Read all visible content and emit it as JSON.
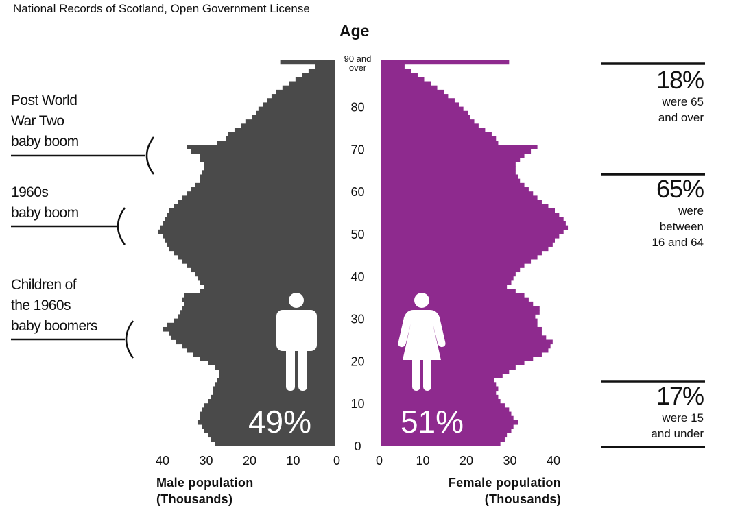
{
  "source_note": "National Records of Scotland, Open Government License",
  "chart_data": {
    "type": "bar",
    "subtype": "population-pyramid",
    "title": "Age",
    "age_labels": [
      "0",
      "10",
      "20",
      "30",
      "40",
      "50",
      "60",
      "70",
      "80",
      "90 and over"
    ],
    "age_top_label_lines": [
      "90 and",
      "over"
    ],
    "ages": [
      0,
      1,
      2,
      3,
      4,
      5,
      6,
      7,
      8,
      9,
      10,
      11,
      12,
      13,
      14,
      15,
      16,
      17,
      18,
      19,
      20,
      21,
      22,
      23,
      24,
      25,
      26,
      27,
      28,
      29,
      30,
      31,
      32,
      33,
      34,
      35,
      36,
      37,
      38,
      39,
      40,
      41,
      42,
      43,
      44,
      45,
      46,
      47,
      48,
      49,
      50,
      51,
      52,
      53,
      54,
      55,
      56,
      57,
      58,
      59,
      60,
      61,
      62,
      63,
      64,
      65,
      66,
      67,
      68,
      69,
      70,
      71,
      72,
      73,
      74,
      75,
      76,
      77,
      78,
      79,
      80,
      81,
      82,
      83,
      84,
      85,
      86,
      87,
      88,
      89,
      90
    ],
    "male": [
      27.5,
      28.5,
      29,
      30,
      30.5,
      31.5,
      31,
      31,
      30.5,
      30,
      29,
      28.5,
      28,
      28,
      27.5,
      27,
      26.5,
      26.5,
      27.5,
      29,
      31,
      32.5,
      34,
      35,
      36.5,
      37.5,
      38,
      39.5,
      38.5,
      37,
      36,
      35.5,
      35,
      34.5,
      35,
      34.5,
      31,
      30,
      31,
      31.5,
      32,
      33,
      34,
      35,
      36,
      37,
      38,
      38.5,
      39,
      39.5,
      40.5,
      40,
      39.5,
      39,
      38.5,
      38,
      37,
      36,
      35,
      34,
      33,
      32,
      31,
      31,
      30.5,
      30,
      30,
      31,
      31,
      33,
      34,
      27,
      25,
      24.5,
      23,
      21.5,
      20.5,
      19,
      18,
      17.5,
      16.5,
      15.5,
      14.5,
      13.5,
      12,
      10.5,
      9,
      7.5,
      6,
      4.5,
      12.5
    ],
    "female": [
      27.5,
      28.5,
      29,
      30,
      30.5,
      31.5,
      30.5,
      30,
      29.5,
      28.5,
      27.5,
      27,
      26.5,
      27,
      26.5,
      26,
      28,
      29.5,
      31,
      33,
      35,
      37,
      38.5,
      39,
      39.5,
      38,
      37,
      37,
      36,
      36,
      35.5,
      36.5,
      36.5,
      35,
      34,
      33,
      31,
      29,
      30,
      30.5,
      31,
      32,
      33,
      34.5,
      36,
      37,
      38.5,
      39.5,
      40,
      41,
      42,
      43,
      42.5,
      42,
      41,
      40,
      38.5,
      37,
      36,
      35,
      34,
      33,
      32,
      31.5,
      31,
      31,
      31,
      32,
      33,
      34.5,
      36,
      27,
      26.5,
      25.5,
      24,
      22.5,
      21.5,
      20.5,
      20,
      19,
      18,
      17,
      15.5,
      14.5,
      13,
      11.5,
      10,
      8.5,
      7,
      5.5,
      29.5
    ],
    "x_ticks": [
      0,
      10,
      20,
      30,
      40
    ],
    "x_range": [
      0,
      40
    ],
    "series": [
      {
        "name": "Male population (Thousands)",
        "color": "#4a4a4a",
        "share_label": "49%"
      },
      {
        "name": "Female population (Thousands)",
        "color": "#8e2a8e",
        "share_label": "51%"
      }
    ],
    "male_axis_title_lines": [
      "Male population",
      "(Thousands)"
    ],
    "female_axis_title_lines": [
      "Female population",
      "(Thousands)"
    ]
  },
  "annotations": [
    {
      "lines": [
        "Post World",
        "War Two",
        "baby boom"
      ]
    },
    {
      "lines": [
        "1960s",
        "baby boom"
      ]
    },
    {
      "lines": [
        "Children of",
        "the 1960s",
        "baby boomers"
      ]
    }
  ],
  "stats": [
    {
      "pct": "18%",
      "lines": [
        "were 65",
        "and over"
      ]
    },
    {
      "pct": "65%",
      "lines": [
        "were",
        "between",
        "16 and 64"
      ]
    },
    {
      "pct": "17%",
      "lines": [
        "were 15",
        "and under"
      ]
    }
  ],
  "icons": [
    "male-person-icon",
    "female-person-icon"
  ]
}
